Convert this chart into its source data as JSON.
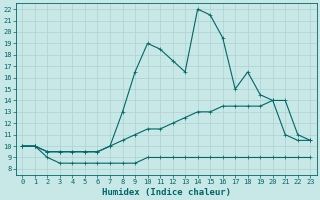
{
  "xlabel": "Humidex (Indice chaleur)",
  "background_color": "#c8e8e8",
  "grid_color": "#b0d0d0",
  "line_color": "#006666",
  "xlim": [
    -0.5,
    23.5
  ],
  "ylim": [
    7.5,
    22.5
  ],
  "xticks": [
    0,
    1,
    2,
    3,
    4,
    5,
    6,
    7,
    8,
    9,
    10,
    11,
    12,
    13,
    14,
    15,
    16,
    17,
    18,
    19,
    20,
    21,
    22,
    23
  ],
  "yticks": [
    8,
    9,
    10,
    11,
    12,
    13,
    14,
    15,
    16,
    17,
    18,
    19,
    20,
    21,
    22
  ],
  "curve1_x": [
    0,
    1,
    2,
    3,
    4,
    5,
    6,
    7,
    8,
    9,
    10,
    11,
    12,
    13,
    14,
    15,
    16,
    17,
    18,
    19,
    20,
    21,
    22,
    23
  ],
  "curve1_y": [
    10.0,
    10.0,
    9.0,
    8.5,
    8.5,
    8.5,
    8.5,
    8.5,
    8.5,
    8.5,
    9.0,
    9.0,
    9.0,
    9.0,
    9.0,
    9.0,
    9.0,
    9.0,
    9.0,
    9.0,
    9.0,
    9.0,
    9.0,
    9.0
  ],
  "curve2_x": [
    0,
    1,
    2,
    3,
    4,
    5,
    6,
    7,
    8,
    9,
    10,
    11,
    12,
    13,
    14,
    15,
    16,
    17,
    18,
    19,
    20,
    21,
    22,
    23
  ],
  "curve2_y": [
    10.0,
    10.0,
    9.5,
    9.5,
    9.5,
    9.5,
    9.5,
    10.0,
    10.5,
    11.0,
    11.5,
    11.5,
    12.0,
    12.5,
    13.0,
    13.0,
    13.5,
    13.5,
    13.5,
    13.5,
    14.0,
    11.0,
    10.5,
    10.5
  ],
  "curve3_x": [
    0,
    1,
    2,
    3,
    4,
    5,
    6,
    7,
    8,
    9,
    10,
    11,
    12,
    13,
    14,
    15,
    16,
    17,
    18,
    19,
    20,
    21,
    22,
    23
  ],
  "curve3_y": [
    10.0,
    10.0,
    9.5,
    9.5,
    9.5,
    9.5,
    9.5,
    10.0,
    13.0,
    16.5,
    19.0,
    18.5,
    17.5,
    16.5,
    22.0,
    21.5,
    19.5,
    15.0,
    16.5,
    14.5,
    14.0,
    14.0,
    11.0,
    10.5
  ]
}
